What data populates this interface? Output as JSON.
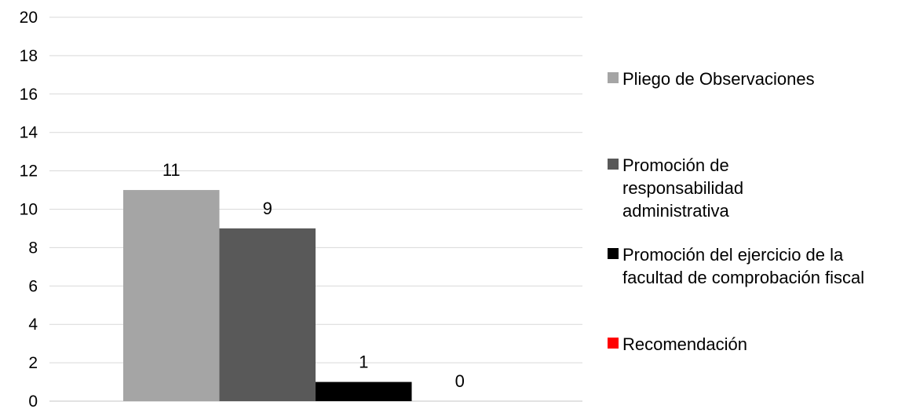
{
  "chart_data": {
    "type": "bar",
    "categories": [
      ""
    ],
    "series": [
      {
        "name": "Pliego de Observaciones",
        "values": [
          11
        ],
        "color": "#a5a5a5"
      },
      {
        "name": "Promoción de responsabilidad administrativa",
        "values": [
          9
        ],
        "color": "#595959"
      },
      {
        "name": "Promoción del ejercicio de la facultad de comprobación fiscal",
        "values": [
          1
        ],
        "color": "#000000"
      },
      {
        "name": "Recomendación",
        "values": [
          0
        ],
        "color": "#ff0000"
      }
    ],
    "yticks": [
      "0",
      "2",
      "4",
      "6",
      "8",
      "10",
      "12",
      "14",
      "16",
      "18",
      "20"
    ],
    "ylim": [
      0,
      20
    ],
    "title": "",
    "xlabel": "",
    "ylabel": "",
    "grid": true,
    "legend_position": "right"
  }
}
